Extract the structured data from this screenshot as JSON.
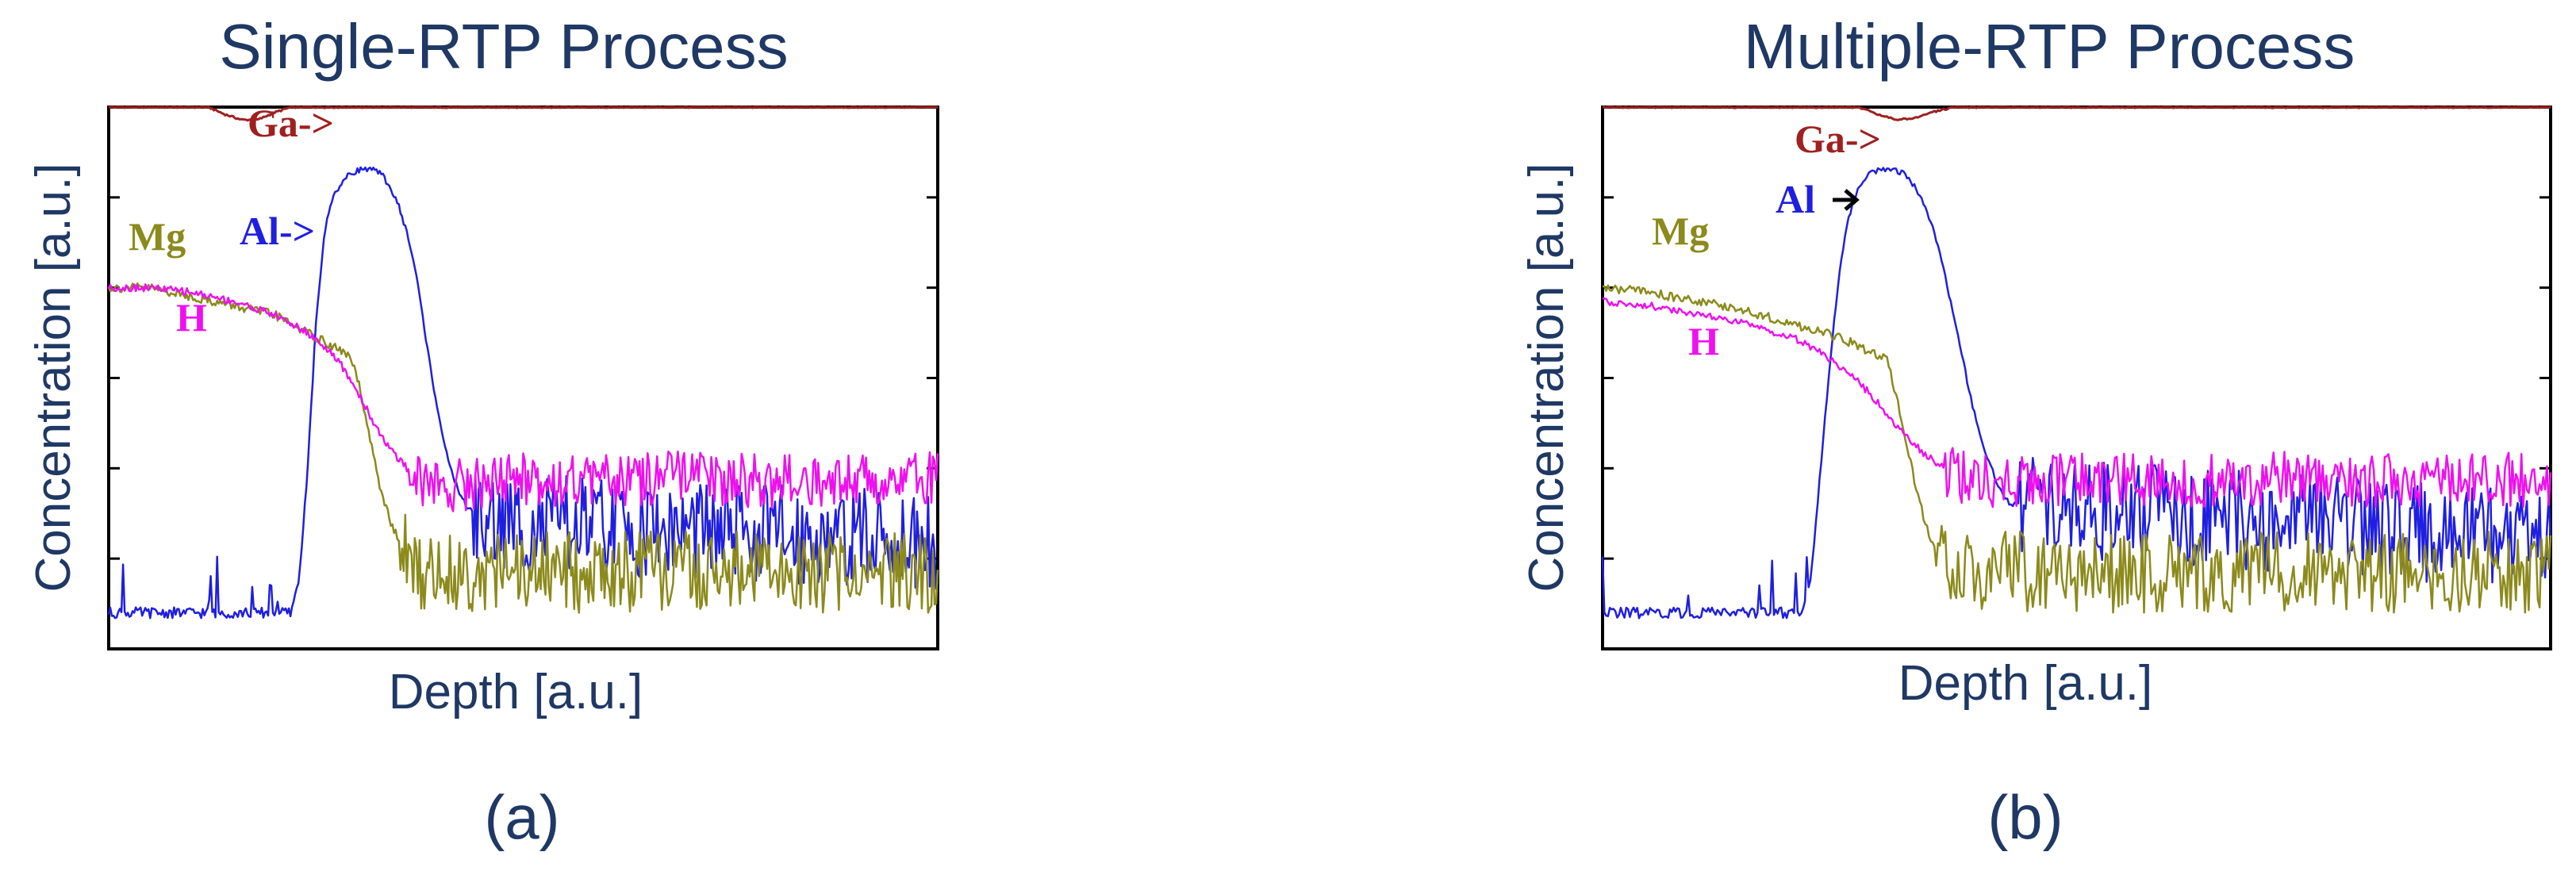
{
  "figure": {
    "panels": [
      {
        "title": "Single-RTP Process",
        "xlabel": "Depth [a.u.]",
        "ylabel": "Concentration [a.u.]",
        "caption": "(a)",
        "annotations": [
          {
            "series": "Ga",
            "text": "Ga->",
            "color": "#a02020"
          },
          {
            "series": "Al",
            "text": "Al->",
            "color": "#1f1fe0"
          },
          {
            "series": "Mg",
            "text": "Mg",
            "color": "#8c8a1c"
          },
          {
            "series": "H",
            "text": "H",
            "color": "#ee11ee"
          }
        ]
      },
      {
        "title": "Multiple-RTP Process",
        "xlabel": "Depth [a.u.]",
        "ylabel": "Concentration [a.u.]",
        "caption": "(b)",
        "annotations": [
          {
            "series": "Ga",
            "text": "Ga->",
            "color": "#a02020"
          },
          {
            "series": "Al",
            "text": "Al",
            "color": "#1f1fe0"
          },
          {
            "series": "Mg",
            "text": "Mg",
            "color": "#8c8a1c"
          },
          {
            "series": "H",
            "text": "H",
            "color": "#ee11ee"
          }
        ]
      }
    ]
  },
  "chart_data": [
    {
      "type": "line",
      "title": "Single-RTP Process",
      "xlabel": "Depth [a.u.]",
      "ylabel": "Concentration [a.u.]",
      "xlim": [
        0,
        100
      ],
      "ylim": [
        0,
        6
      ],
      "log_scale_y": true,
      "grid": false,
      "series": [
        {
          "name": "Ga",
          "color": "#a02020",
          "x": [
            0,
            10,
            12,
            14,
            16,
            18,
            20,
            22,
            24,
            26,
            28,
            100
          ],
          "y": [
            6.0,
            6.0,
            6.0,
            5.92,
            5.86,
            5.86,
            5.94,
            6.0,
            6.0,
            6.0,
            6.0,
            6.0
          ]
        },
        {
          "name": "Al",
          "color": "#1f1fe0",
          "x": [
            0,
            22,
            23,
            24,
            25,
            26,
            27,
            28,
            29,
            30,
            31,
            32,
            33,
            34,
            35,
            36,
            37,
            38,
            39,
            40,
            41,
            42,
            43,
            44,
            45,
            100
          ],
          "y": [
            0.4,
            0.4,
            0.8,
            2.0,
            3.6,
            4.6,
            5.0,
            5.15,
            5.25,
            5.3,
            5.32,
            5.3,
            5.25,
            5.1,
            4.9,
            4.6,
            4.2,
            3.6,
            3.0,
            2.5,
            2.05,
            1.8,
            1.6,
            1.5,
            1.4,
            1.2
          ]
        },
        {
          "name": "Mg",
          "color": "#8c8a1c",
          "x": [
            0,
            5,
            10,
            15,
            20,
            25,
            27,
            29,
            30,
            31,
            32,
            33,
            34,
            35,
            36,
            37,
            100
          ],
          "y": [
            4.0,
            4.0,
            3.9,
            3.8,
            3.7,
            3.45,
            3.35,
            3.25,
            3.0,
            2.55,
            2.1,
            1.7,
            1.4,
            1.2,
            1.0,
            0.85,
            0.85
          ]
        },
        {
          "name": "H",
          "color": "#ee11ee",
          "x": [
            0,
            5,
            10,
            15,
            20,
            22,
            24,
            26,
            28,
            30,
            32,
            34,
            36,
            38,
            40,
            45,
            50,
            60,
            70,
            80,
            90,
            100
          ],
          "y": [
            4.0,
            4.0,
            3.95,
            3.85,
            3.7,
            3.6,
            3.5,
            3.35,
            3.15,
            2.85,
            2.5,
            2.2,
            2.0,
            1.85,
            1.8,
            1.85,
            1.9,
            1.85,
            1.9,
            1.85,
            1.9,
            1.9
          ]
        }
      ]
    },
    {
      "type": "line",
      "title": "Multiple-RTP Process",
      "xlabel": "Depth [a.u.]",
      "ylabel": "Concentration [a.u.]",
      "xlim": [
        0,
        100
      ],
      "ylim": [
        0,
        6
      ],
      "log_scale_y": true,
      "grid": false,
      "series": [
        {
          "name": "Ga",
          "color": "#a02020",
          "x": [
            0,
            27,
            29,
            31,
            33,
            35,
            37,
            100
          ],
          "y": [
            6.0,
            6.0,
            5.92,
            5.86,
            5.88,
            5.95,
            6.0,
            6.0
          ]
        },
        {
          "name": "Al",
          "color": "#1f1fe0",
          "x": [
            0,
            21,
            22,
            23,
            24,
            25,
            26,
            27,
            28,
            29,
            30,
            31,
            32,
            33,
            34,
            35,
            36,
            37,
            38,
            39,
            40,
            41,
            42,
            43,
            100
          ],
          "y": [
            0.4,
            0.4,
            0.8,
            2.0,
            3.2,
            4.2,
            4.8,
            5.1,
            5.25,
            5.3,
            5.32,
            5.3,
            5.25,
            5.1,
            4.9,
            4.6,
            4.2,
            3.7,
            3.2,
            2.7,
            2.3,
            2.0,
            1.75,
            1.6,
            1.2
          ]
        },
        {
          "name": "Mg",
          "color": "#8c8a1c",
          "x": [
            0,
            5,
            10,
            15,
            20,
            25,
            28,
            30,
            31,
            32,
            33,
            34,
            35,
            36,
            37,
            100
          ],
          "y": [
            4.0,
            3.95,
            3.85,
            3.75,
            3.6,
            3.45,
            3.3,
            3.2,
            2.8,
            2.3,
            1.8,
            1.4,
            1.1,
            0.9,
            0.85,
            0.85
          ]
        },
        {
          "name": "H",
          "color": "#ee11ee",
          "x": [
            0,
            5,
            10,
            15,
            20,
            22,
            24,
            26,
            28,
            30,
            32,
            34,
            36,
            38,
            40,
            45,
            50,
            60,
            70,
            80,
            90,
            100
          ],
          "y": [
            3.85,
            3.8,
            3.7,
            3.6,
            3.45,
            3.35,
            3.2,
            3.05,
            2.85,
            2.6,
            2.35,
            2.15,
            2.0,
            1.9,
            1.85,
            1.85,
            1.9,
            1.85,
            1.9,
            1.85,
            1.9,
            1.85
          ]
        }
      ]
    }
  ]
}
